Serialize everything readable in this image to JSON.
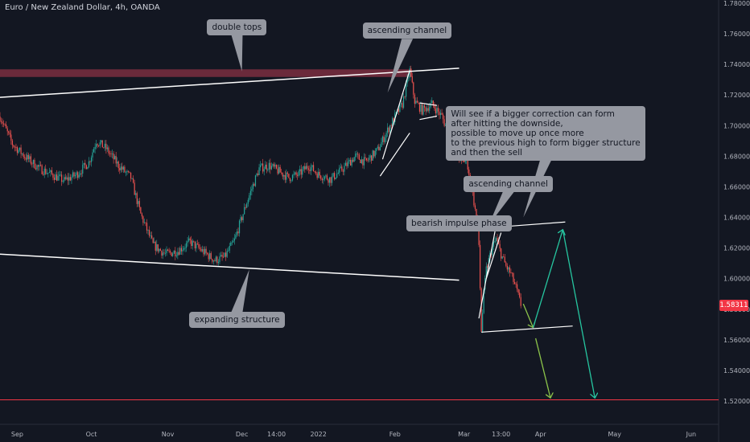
{
  "chart_data": {
    "type": "candlestick",
    "title": "Euro / New Zealand Dollar, 4h, OANDA",
    "y_ticks": [
      "1.78000",
      "1.76000",
      "1.74000",
      "1.72000",
      "1.70000",
      "1.68000",
      "1.66000",
      "1.64000",
      "1.62000",
      "1.60000",
      "1.58000",
      "1.56000",
      "1.54000",
      "1.52000"
    ],
    "x_ticks": [
      "Sep",
      "Oct",
      "Nov",
      "Dec",
      "14:00",
      "2022",
      "Feb",
      "Mar",
      "13:00",
      "Apr",
      "May",
      "Jun"
    ],
    "ylim": [
      1.508,
      1.785
    ],
    "current_price": "1.58311",
    "target_price": 1.5208,
    "price_path": [
      [
        "2021-08-25",
        1.706
      ],
      [
        "2021-08-30",
        1.688
      ],
      [
        "2021-09-04",
        1.68
      ],
      [
        "2021-09-10",
        1.672
      ],
      [
        "2021-09-15",
        1.668
      ],
      [
        "2021-09-20",
        1.664
      ],
      [
        "2021-09-25",
        1.668
      ],
      [
        "2021-09-30",
        1.676
      ],
      [
        "2021-10-03",
        1.69
      ],
      [
        "2021-10-07",
        1.685
      ],
      [
        "2021-10-12",
        1.674
      ],
      [
        "2021-10-17",
        1.666
      ],
      [
        "2021-10-21",
        1.642
      ],
      [
        "2021-10-26",
        1.622
      ],
      [
        "2021-10-31",
        1.616
      ],
      [
        "2021-11-05",
        1.618
      ],
      [
        "2021-11-10",
        1.624
      ],
      [
        "2021-11-15",
        1.618
      ],
      [
        "2021-11-20",
        1.612
      ],
      [
        "2021-11-24",
        1.614
      ],
      [
        "2021-11-28",
        1.625
      ],
      [
        "2021-12-03",
        1.65
      ],
      [
        "2021-12-08",
        1.672
      ],
      [
        "2021-12-12",
        1.674
      ],
      [
        "2021-12-16",
        1.67
      ],
      [
        "2021-12-20",
        1.666
      ],
      [
        "2021-12-24",
        1.668
      ],
      [
        "2021-12-28",
        1.674
      ],
      [
        "2022-01-01",
        1.668
      ],
      [
        "2022-01-06",
        1.665
      ],
      [
        "2022-01-11",
        1.672
      ],
      [
        "2022-01-16",
        1.68
      ],
      [
        "2022-01-20",
        1.676
      ],
      [
        "2022-01-25",
        1.684
      ],
      [
        "2022-01-30",
        1.7
      ],
      [
        "2022-02-04",
        1.714
      ],
      [
        "2022-02-07",
        1.736
      ],
      [
        "2022-02-09",
        1.716
      ],
      [
        "2022-02-12",
        1.71
      ],
      [
        "2022-02-16",
        1.714
      ],
      [
        "2022-02-20",
        1.706
      ],
      [
        "2022-02-24",
        1.69
      ],
      [
        "2022-02-28",
        1.676
      ],
      [
        "2022-03-02",
        1.678
      ],
      [
        "2022-03-04",
        1.66
      ],
      [
        "2022-03-06",
        1.64
      ],
      [
        "2022-03-07",
        1.622
      ],
      [
        "2022-03-08",
        1.566
      ],
      [
        "2022-03-09",
        1.59
      ],
      [
        "2022-03-10",
        1.606
      ],
      [
        "2022-03-12",
        1.618
      ],
      [
        "2022-03-14",
        1.626
      ],
      [
        "2022-03-16",
        1.616
      ],
      [
        "2022-03-18",
        1.608
      ],
      [
        "2022-03-20",
        1.603
      ],
      [
        "2022-03-22",
        1.594
      ],
      [
        "2022-03-24",
        1.583
      ]
    ],
    "drawings": {
      "resistance_zone": {
        "y_top": 1.7368,
        "y_bottom": 1.7318
      },
      "upper_line": [
        [
          "2021-08-25",
          1.7185
        ],
        [
          "2022-02-27",
          1.7375
        ]
      ],
      "lower_line": [
        [
          "2021-08-25",
          1.616
        ],
        [
          "2022-02-27",
          1.599
        ]
      ],
      "channel1_lower": [
        [
          "2022-01-26",
          1.667
        ],
        [
          "2022-02-07",
          1.6952
        ]
      ],
      "channel1_upper": [
        [
          "2022-01-27",
          1.678
        ],
        [
          "2022-02-07",
          1.7362
        ]
      ],
      "flag_upper": [
        [
          "2022-02-11",
          1.7148
        ],
        [
          "2022-02-18",
          1.7132
        ]
      ],
      "flag_lower": [
        [
          "2022-02-11",
          1.704
        ],
        [
          "2022-02-18",
          1.7062
        ]
      ],
      "channel2_left": [
        [
          "2022-03-07",
          1.574
        ],
        [
          "2022-03-14",
          1.635
        ]
      ],
      "channel2_right": [
        [
          "2022-03-10",
          1.6
        ],
        [
          "2022-03-16",
          1.63
        ]
      ],
      "channel2_upper": [
        [
          "2022-03-09",
          1.633
        ],
        [
          "2022-04-11",
          1.637
        ]
      ],
      "channel2_lower": [
        [
          "2022-03-08",
          1.565
        ],
        [
          "2022-04-14",
          1.569
        ]
      ],
      "projection_bullish": [
        [
          "2022-03-25",
          1.5835
        ],
        [
          "2022-03-29",
          1.568
        ],
        [
          "2022-04-10",
          1.632
        ],
        [
          "2022-04-23",
          1.522
        ]
      ],
      "projection_bearish": [
        [
          "2022-03-30",
          1.561
        ],
        [
          "2022-04-05",
          1.522
        ]
      ]
    },
    "annotations": [
      {
        "text": "double tops",
        "x": "2021-11-29",
        "y": 1.7645,
        "pointer": [
          "2021-12-01",
          1.7355
        ]
      },
      {
        "text": "ascending channel",
        "x": "2022-02-06",
        "y": 1.762,
        "pointer": [
          "2022-01-29",
          1.7215
        ]
      },
      {
        "text": "Will see if a bigger correction can form\nafter hitting the downside,\npossible to move up once more\nto the previous high to form bigger structure\nand then the sell",
        "x": "2022-04-03",
        "y": 1.695,
        "pointer": [
          "2022-03-25",
          1.64
        ]
      },
      {
        "text": "ascending channel",
        "x": "2022-03-19",
        "y": 1.662,
        "pointer": [
          "2022-03-11",
          1.635
        ]
      },
      {
        "text": "bearish impulse phase",
        "x": "2022-02-27",
        "y": 1.636,
        "pointer": null
      },
      {
        "text": "expanding structure",
        "x": "2021-11-29",
        "y": 1.573,
        "pointer": [
          "2021-12-04",
          1.606
        ]
      }
    ]
  }
}
